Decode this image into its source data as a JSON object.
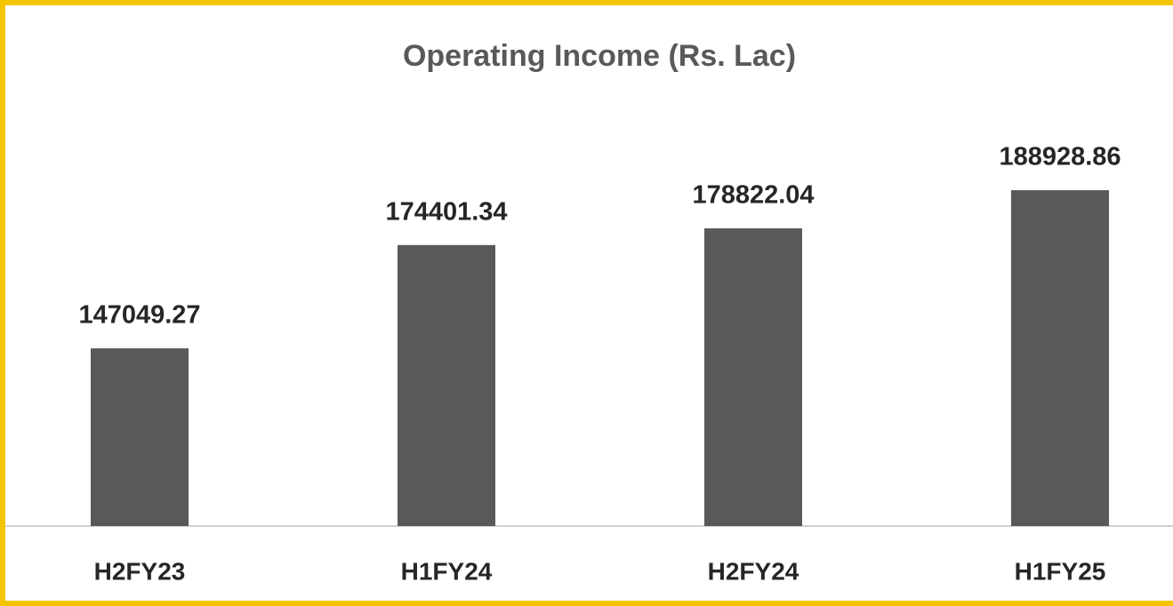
{
  "chart_data": {
    "type": "bar",
    "title": "Operating Income (Rs. Lac)",
    "categories": [
      "H2FY23",
      "H1FY24",
      "H2FY24",
      "H1FY25"
    ],
    "values": [
      147049.27,
      174401.34,
      178822.04,
      188928.86
    ],
    "color": "#595959",
    "ylim": [
      100000,
      200000
    ]
  }
}
